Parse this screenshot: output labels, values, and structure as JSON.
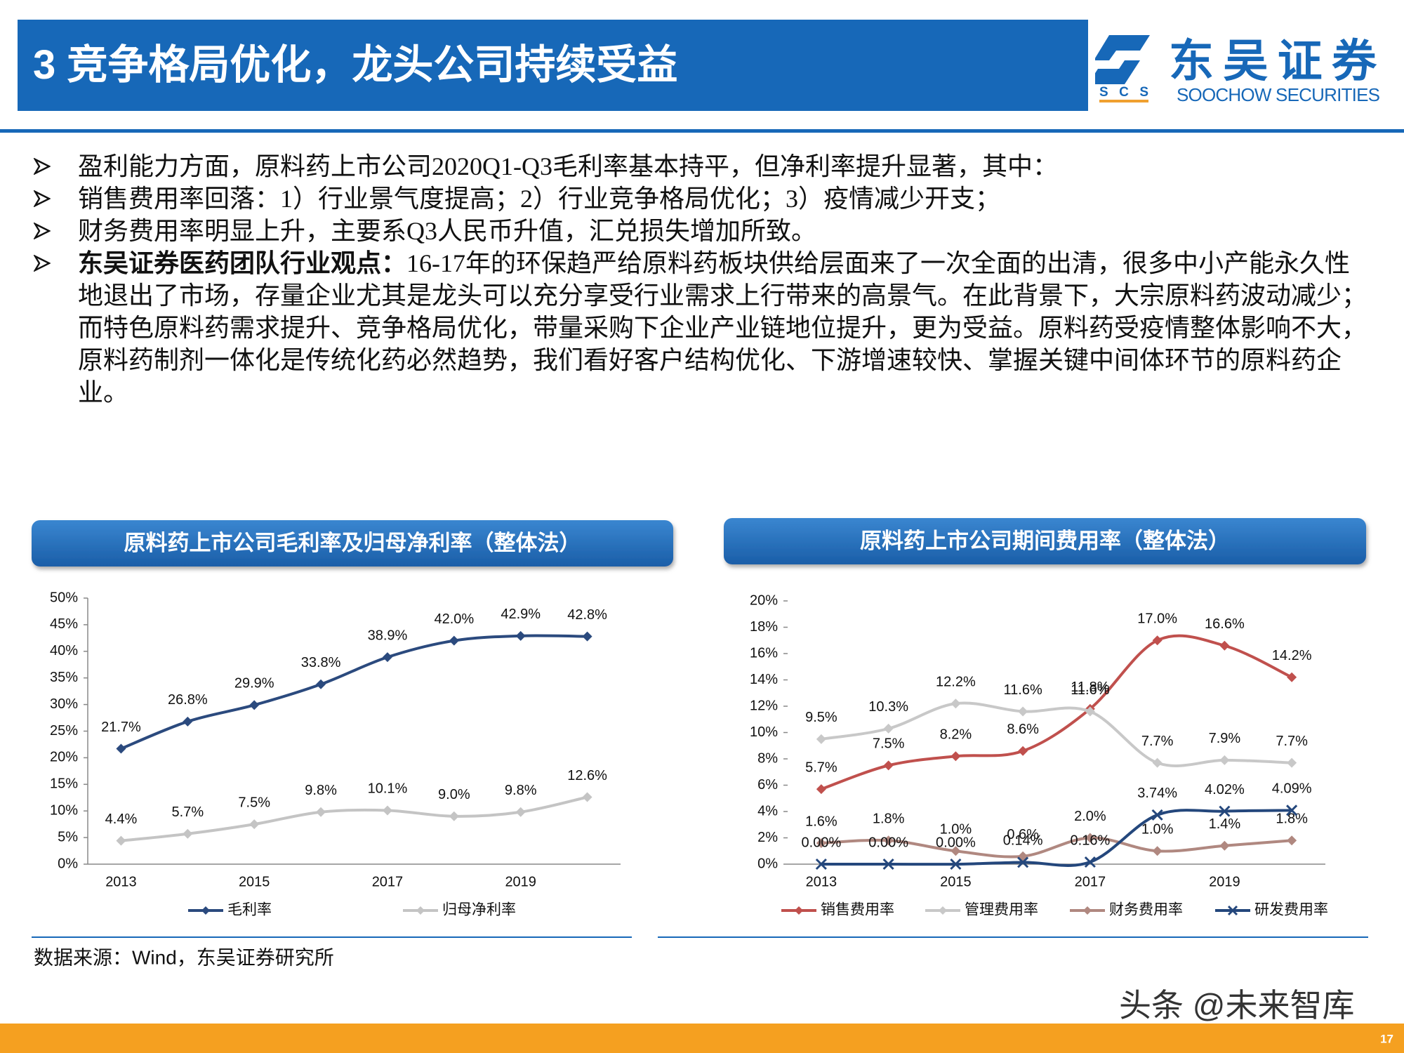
{
  "header": {
    "title": "3 竞争格局优化，龙头公司持续受益"
  },
  "logo": {
    "name": "东吴证券",
    "english": "SOOCHOW SECURITIES",
    "abbr": "SCS"
  },
  "bullets": [
    {
      "text": "盈利能力方面，原料药上市公司2020Q1-Q3毛利率基本持平，但净利率提升显著，其中："
    },
    {
      "text": "销售费用率回落：1）行业景气度提高；2）行业竞争格局优化；3）疫情减少开支；"
    },
    {
      "text": "财务费用率明显上升，主要系Q3人民币升值，汇兑损失增加所致。"
    },
    {
      "label": "东吴证券医药团队行业观点：",
      "text": "16-17年的环保趋严给原料药板块供给层面来了一次全面的出清，很多中小产能永久性地退出了市场，存量企业尤其是龙头可以充分享受行业需求上行带来的高景气。在此背景下，大宗原料药波动减少；而特色原料药需求提升、竞争格局优化，带量采购下企业产业链地位提升，更为受益。原料药受疫情整体影响不大，原料药制剂一体化是传统化药必然趋势，我们看好客户结构优化、下游增速较快、掌握关键中间体环节的原料药企业。"
    }
  ],
  "chart_data": [
    {
      "type": "line",
      "title": "原料药上市公司毛利率及归母净利率（整体法）",
      "categories": [
        "2013",
        null,
        "2015",
        null,
        "2017",
        null,
        "2019",
        null
      ],
      "ylim": [
        0,
        50
      ],
      "yticks": [
        {
          "value": 0,
          "label": "0%"
        },
        {
          "value": 5,
          "label": "5%"
        },
        {
          "value": 10,
          "label": "10%"
        },
        {
          "value": 15,
          "label": "15%"
        },
        {
          "value": 20,
          "label": "20%"
        },
        {
          "value": 25,
          "label": "25%"
        },
        {
          "value": 30,
          "label": "30%"
        },
        {
          "value": 35,
          "label": "35%"
        },
        {
          "value": 40,
          "label": "40%"
        },
        {
          "value": 45,
          "label": "45%"
        },
        {
          "value": 50,
          "label": "50%"
        }
      ],
      "series": [
        {
          "name": "毛利率",
          "color": "#2b4a7e",
          "marker": "diamond",
          "values": [
            21.7,
            26.8,
            29.9,
            33.8,
            38.9,
            42.0,
            42.9,
            42.8
          ],
          "value_labels": [
            "21.7%",
            "26.8%",
            "29.9%",
            "33.8%",
            "38.9%",
            "42.0%",
            "42.9%",
            "42.8%"
          ]
        },
        {
          "name": "归母净利率",
          "color": "#c4c4c4",
          "marker": "diamond",
          "values": [
            4.4,
            5.7,
            7.5,
            9.8,
            10.1,
            9.0,
            9.8,
            12.6
          ],
          "value_labels": [
            "4.4%",
            "5.7%",
            "7.5%",
            "9.8%",
            "10.1%",
            "9.0%",
            "9.8%",
            "12.6%"
          ]
        }
      ]
    },
    {
      "type": "line",
      "title": "原料药上市公司期间费用率（整体法）",
      "categories": [
        "2013",
        null,
        "2015",
        null,
        "2017",
        null,
        "2019",
        null
      ],
      "ylim": [
        0,
        20
      ],
      "yticks": [
        {
          "value": 0,
          "label": "0%"
        },
        {
          "value": 2,
          "label": "2%"
        },
        {
          "value": 4,
          "label": "4%"
        },
        {
          "value": 6,
          "label": "6%"
        },
        {
          "value": 8,
          "label": "8%"
        },
        {
          "value": 10,
          "label": "10%"
        },
        {
          "value": 12,
          "label": "12%"
        },
        {
          "value": 14,
          "label": "14%"
        },
        {
          "value": 16,
          "label": "16%"
        },
        {
          "value": 18,
          "label": "18%"
        },
        {
          "value": 20,
          "label": "20%"
        }
      ],
      "series": [
        {
          "name": "销售费用率",
          "color": "#c0504d",
          "marker": "diamond",
          "values": [
            5.7,
            7.5,
            8.2,
            8.6,
            11.8,
            17.0,
            16.6,
            14.2
          ],
          "value_labels": [
            "5.7%",
            "7.5%",
            "8.2%",
            "8.6%",
            "11.8%",
            "17.0%",
            "16.6%",
            "14.2%"
          ]
        },
        {
          "name": "管理费用率",
          "color": "#c8c8c8",
          "marker": "diamond",
          "values": [
            9.5,
            10.3,
            12.2,
            11.6,
            11.6,
            7.7,
            7.9,
            7.7
          ],
          "value_labels": [
            "9.5%",
            "10.3%",
            "12.2%",
            "11.6%",
            "11.6%",
            "7.7%",
            "7.9%",
            "7.7%"
          ]
        },
        {
          "name": "财务费用率",
          "color": "#b08880",
          "marker": "diamond",
          "values": [
            1.6,
            1.8,
            1.0,
            0.6,
            2.0,
            1.0,
            1.4,
            1.8
          ],
          "value_labels": [
            "1.6%",
            "1.8%",
            "1.0%",
            "0.6%",
            "2.0%",
            "1.0%",
            "1.4%",
            "1.8%"
          ]
        },
        {
          "name": "研发费用率",
          "color": "#24477c",
          "marker": "x",
          "values": [
            0,
            0,
            0,
            0.14,
            0.16,
            3.74,
            4.02,
            4.09
          ],
          "value_labels": [
            "0.00%",
            "0.00%",
            "0.00%",
            "0.14%",
            "0.16%",
            "3.74%",
            "4.02%",
            "4.09%"
          ]
        }
      ]
    }
  ],
  "source": "数据来源：Wind，东吴证券研究所",
  "page_number": "17",
  "watermark": "头条 @未来智库"
}
